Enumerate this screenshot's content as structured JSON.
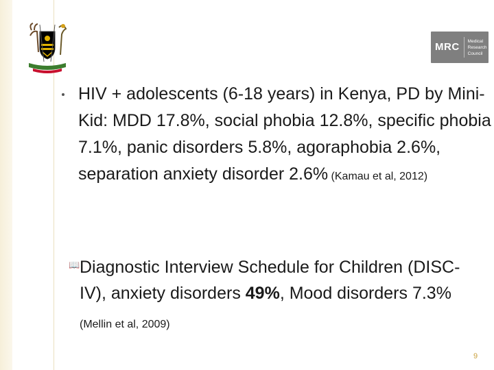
{
  "slide": {
    "logo_mrc": {
      "short": "MRC",
      "lines": [
        "Medical",
        "Research",
        "Council"
      ]
    },
    "bullet1": {
      "main": "HIV + adolescents (6-18 years) in Kenya, PD by Mini-Kid: MDD 17.8%, social phobia 12.8%, specific phobia 7.1%, panic disorders 5.8%, agoraphobia 2.6%, separation anxiety disorder 2.6%",
      "ref": " (Kamau et al, 2012)"
    },
    "bullet2": {
      "part1": "Diagnostic Interview Schedule for Children (DISC-IV), anxiety disorders ",
      "bold": "49%",
      "part2": ", Mood disorders 7.3%",
      "ref": " (Mellin et al, 2009)"
    },
    "page_number": "9"
  }
}
